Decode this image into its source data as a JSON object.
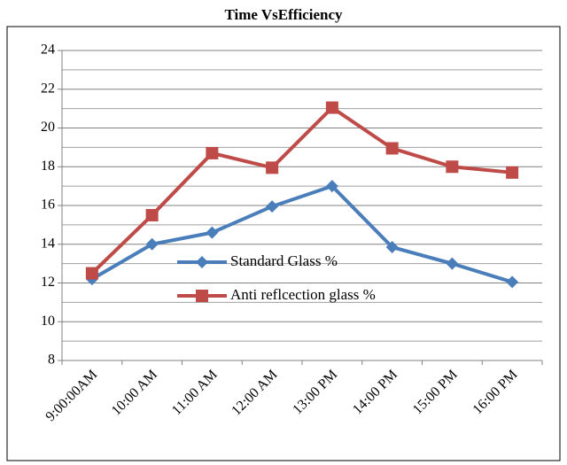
{
  "chart_data": {
    "type": "line",
    "title": "Time VsEfficiency",
    "categories": [
      "9:00:00AM",
      "10:00 AM",
      "11:00 AM",
      "12:00 AM",
      "13:00 PM",
      "14:00 PM",
      "15:00 PM",
      "16:00 PM"
    ],
    "series": [
      {
        "name": "Standard Glass %",
        "color": "#4a7ebb",
        "marker": "diamond",
        "values": [
          12.2,
          14,
          14.6,
          15.95,
          17,
          13.85,
          13,
          12.05
        ]
      },
      {
        "name": "Anti reflcection glass %",
        "color": "#be4b48",
        "marker": "square",
        "values": [
          12.5,
          15.5,
          18.7,
          17.95,
          21.05,
          18.95,
          18,
          17.7
        ]
      }
    ],
    "ylim": [
      8,
      24
    ],
    "yticks": [
      8,
      10,
      12,
      14,
      16,
      18,
      20,
      22,
      24
    ],
    "minor_yticks": [
      9,
      11,
      13,
      15,
      17,
      19,
      21,
      23
    ],
    "grid": true,
    "legend": "inside"
  }
}
